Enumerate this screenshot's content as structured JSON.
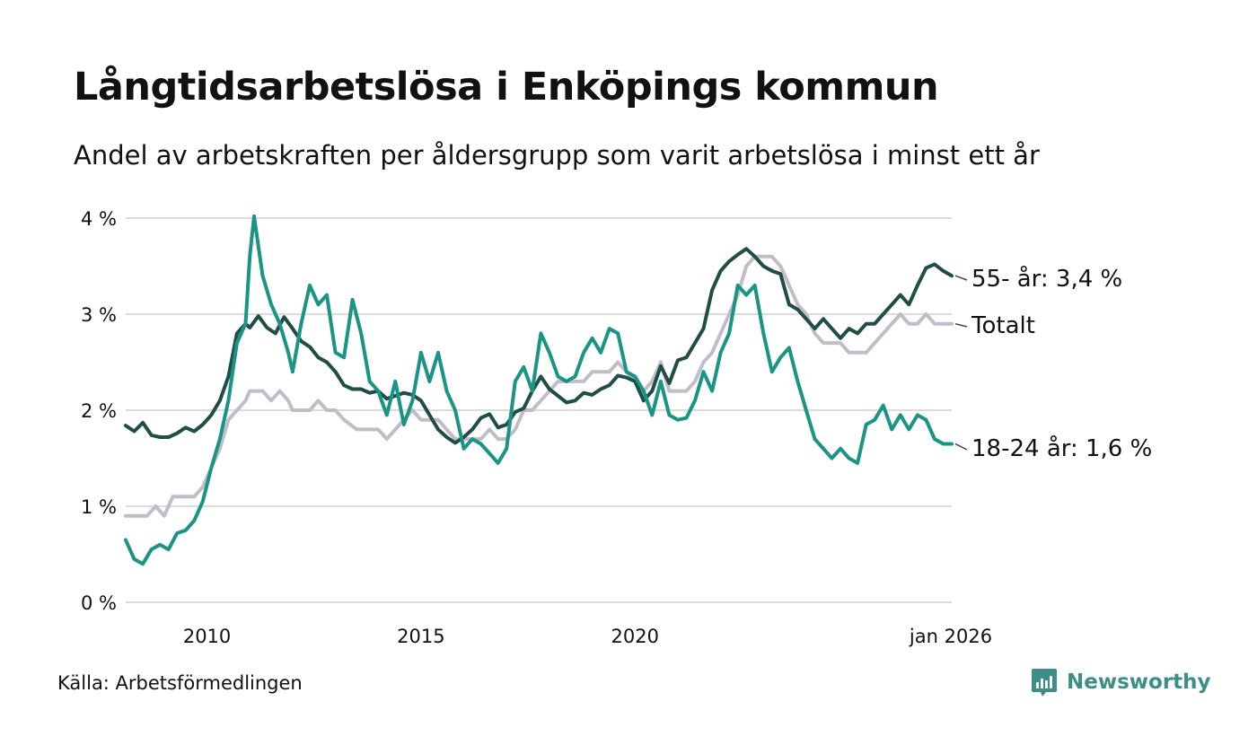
{
  "title": "Långtidsarbetslösa i Enköpings kommun",
  "subtitle": "Andel av arbetskraften per åldersgrupp som varit arbetslösa i minst ett år",
  "source": "Källa: Arbetsförmedlingen",
  "brand": {
    "name": "Newsworthy",
    "icon": "bar-chart-icon",
    "color": "#3c8f86"
  },
  "chart_data": {
    "type": "line",
    "title": "Långtidsarbetslösa i Enköpings kommun",
    "ylabel": "",
    "xlabel": "",
    "ylim": [
      0,
      4
    ],
    "xlim": [
      2008.1,
      2026.0
    ],
    "grid": true,
    "y_ticks": [
      {
        "value": 0,
        "label": "0 %"
      },
      {
        "value": 1,
        "label": "1 %"
      },
      {
        "value": 2,
        "label": "2 %"
      },
      {
        "value": 3,
        "label": "3 %"
      },
      {
        "value": 4,
        "label": "4 %"
      }
    ],
    "x_ticks": [
      {
        "value": 2010,
        "label": "2010"
      },
      {
        "value": 2015,
        "label": "2015"
      },
      {
        "value": 2020,
        "label": "2020"
      },
      {
        "value": 2026,
        "label": "jan 2026"
      }
    ],
    "series": [
      {
        "name": "Totalt",
        "label": "Totalt",
        "color": "#c2bcc9",
        "points": [
          [
            2008.1,
            0.9
          ],
          [
            2008.4,
            0.9
          ],
          [
            2008.6,
            0.9
          ],
          [
            2008.8,
            1.0
          ],
          [
            2009.0,
            0.9
          ],
          [
            2009.2,
            1.1
          ],
          [
            2009.5,
            1.1
          ],
          [
            2009.7,
            1.1
          ],
          [
            2009.9,
            1.2
          ],
          [
            2010.1,
            1.4
          ],
          [
            2010.3,
            1.6
          ],
          [
            2010.5,
            1.9
          ],
          [
            2010.7,
            2.0
          ],
          [
            2010.9,
            2.1
          ],
          [
            2011.0,
            2.2
          ],
          [
            2011.3,
            2.2
          ],
          [
            2011.5,
            2.1
          ],
          [
            2011.7,
            2.2
          ],
          [
            2011.9,
            2.1
          ],
          [
            2012.0,
            2.0
          ],
          [
            2012.2,
            2.0
          ],
          [
            2012.4,
            2.0
          ],
          [
            2012.6,
            2.1
          ],
          [
            2012.8,
            2.0
          ],
          [
            2013.0,
            2.0
          ],
          [
            2013.2,
            1.9
          ],
          [
            2013.5,
            1.8
          ],
          [
            2013.8,
            1.8
          ],
          [
            2014.0,
            1.8
          ],
          [
            2014.2,
            1.7
          ],
          [
            2014.4,
            1.8
          ],
          [
            2014.6,
            1.9
          ],
          [
            2014.8,
            2.0
          ],
          [
            2015.0,
            1.9
          ],
          [
            2015.2,
            1.9
          ],
          [
            2015.4,
            1.9
          ],
          [
            2015.6,
            1.8
          ],
          [
            2015.8,
            1.7
          ],
          [
            2016.0,
            1.7
          ],
          [
            2016.2,
            1.7
          ],
          [
            2016.4,
            1.7
          ],
          [
            2016.6,
            1.8
          ],
          [
            2016.8,
            1.7
          ],
          [
            2017.0,
            1.7
          ],
          [
            2017.2,
            1.8
          ],
          [
            2017.4,
            2.0
          ],
          [
            2017.6,
            2.0
          ],
          [
            2017.8,
            2.1
          ],
          [
            2018.0,
            2.2
          ],
          [
            2018.2,
            2.3
          ],
          [
            2018.4,
            2.3
          ],
          [
            2018.6,
            2.3
          ],
          [
            2018.8,
            2.3
          ],
          [
            2019.0,
            2.4
          ],
          [
            2019.2,
            2.4
          ],
          [
            2019.4,
            2.4
          ],
          [
            2019.6,
            2.5
          ],
          [
            2019.8,
            2.4
          ],
          [
            2020.0,
            2.3
          ],
          [
            2020.2,
            2.2
          ],
          [
            2020.4,
            2.3
          ],
          [
            2020.6,
            2.5
          ],
          [
            2020.8,
            2.2
          ],
          [
            2021.0,
            2.2
          ],
          [
            2021.2,
            2.2
          ],
          [
            2021.4,
            2.3
          ],
          [
            2021.6,
            2.5
          ],
          [
            2021.8,
            2.6
          ],
          [
            2022.0,
            2.8
          ],
          [
            2022.2,
            3.0
          ],
          [
            2022.4,
            3.2
          ],
          [
            2022.6,
            3.5
          ],
          [
            2022.8,
            3.6
          ],
          [
            2023.0,
            3.6
          ],
          [
            2023.2,
            3.6
          ],
          [
            2023.4,
            3.5
          ],
          [
            2023.6,
            3.3
          ],
          [
            2023.8,
            3.1
          ],
          [
            2024.0,
            3.0
          ],
          [
            2024.2,
            2.8
          ],
          [
            2024.4,
            2.7
          ],
          [
            2024.6,
            2.7
          ],
          [
            2024.8,
            2.7
          ],
          [
            2025.0,
            2.6
          ],
          [
            2025.2,
            2.6
          ],
          [
            2025.4,
            2.6
          ],
          [
            2025.6,
            2.7
          ],
          [
            2025.8,
            2.8
          ],
          [
            2026.0,
            2.9
          ],
          [
            2026.2,
            3.0
          ],
          [
            2026.4,
            2.9
          ],
          [
            2026.6,
            2.9
          ],
          [
            2026.8,
            3.0
          ],
          [
            2027.0,
            2.9
          ],
          [
            2027.2,
            2.9
          ],
          [
            2027.4,
            2.9
          ]
        ]
      },
      {
        "name": "55- år",
        "label": "55- år: 3,4 %",
        "color": "#204d46",
        "points": [
          [
            2008.1,
            1.84
          ],
          [
            2008.3,
            1.78
          ],
          [
            2008.5,
            1.87
          ],
          [
            2008.7,
            1.74
          ],
          [
            2008.9,
            1.72
          ],
          [
            2009.1,
            1.72
          ],
          [
            2009.3,
            1.76
          ],
          [
            2009.5,
            1.82
          ],
          [
            2009.7,
            1.78
          ],
          [
            2009.9,
            1.85
          ],
          [
            2010.1,
            1.95
          ],
          [
            2010.3,
            2.1
          ],
          [
            2010.5,
            2.35
          ],
          [
            2010.7,
            2.8
          ],
          [
            2010.9,
            2.9
          ],
          [
            2011.0,
            2.86
          ],
          [
            2011.2,
            2.98
          ],
          [
            2011.4,
            2.86
          ],
          [
            2011.6,
            2.8
          ],
          [
            2011.8,
            2.97
          ],
          [
            2012.0,
            2.85
          ],
          [
            2012.2,
            2.72
          ],
          [
            2012.4,
            2.66
          ],
          [
            2012.6,
            2.55
          ],
          [
            2012.8,
            2.5
          ],
          [
            2013.0,
            2.4
          ],
          [
            2013.2,
            2.26
          ],
          [
            2013.4,
            2.22
          ],
          [
            2013.6,
            2.22
          ],
          [
            2013.8,
            2.18
          ],
          [
            2014.0,
            2.2
          ],
          [
            2014.2,
            2.12
          ],
          [
            2014.4,
            2.15
          ],
          [
            2014.6,
            2.18
          ],
          [
            2014.8,
            2.16
          ],
          [
            2015.0,
            2.1
          ],
          [
            2015.2,
            1.95
          ],
          [
            2015.4,
            1.8
          ],
          [
            2015.6,
            1.72
          ],
          [
            2015.8,
            1.66
          ],
          [
            2016.0,
            1.72
          ],
          [
            2016.2,
            1.8
          ],
          [
            2016.4,
            1.92
          ],
          [
            2016.6,
            1.96
          ],
          [
            2016.8,
            1.82
          ],
          [
            2017.0,
            1.85
          ],
          [
            2017.2,
            1.98
          ],
          [
            2017.4,
            2.02
          ],
          [
            2017.6,
            2.2
          ],
          [
            2017.8,
            2.35
          ],
          [
            2018.0,
            2.22
          ],
          [
            2018.2,
            2.15
          ],
          [
            2018.4,
            2.08
          ],
          [
            2018.6,
            2.1
          ],
          [
            2018.8,
            2.18
          ],
          [
            2019.0,
            2.16
          ],
          [
            2019.2,
            2.22
          ],
          [
            2019.4,
            2.26
          ],
          [
            2019.6,
            2.36
          ],
          [
            2019.8,
            2.34
          ],
          [
            2020.0,
            2.3
          ],
          [
            2020.2,
            2.1
          ],
          [
            2020.4,
            2.2
          ],
          [
            2020.6,
            2.46
          ],
          [
            2020.8,
            2.28
          ],
          [
            2021.0,
            2.52
          ],
          [
            2021.2,
            2.55
          ],
          [
            2021.4,
            2.7
          ],
          [
            2021.6,
            2.85
          ],
          [
            2021.8,
            3.25
          ],
          [
            2022.0,
            3.45
          ],
          [
            2022.2,
            3.55
          ],
          [
            2022.4,
            3.62
          ],
          [
            2022.6,
            3.68
          ],
          [
            2022.8,
            3.6
          ],
          [
            2023.0,
            3.5
          ],
          [
            2023.2,
            3.45
          ],
          [
            2023.4,
            3.42
          ],
          [
            2023.6,
            3.1
          ],
          [
            2023.8,
            3.05
          ],
          [
            2024.0,
            2.95
          ],
          [
            2024.2,
            2.85
          ],
          [
            2024.4,
            2.95
          ],
          [
            2024.6,
            2.85
          ],
          [
            2024.8,
            2.75
          ],
          [
            2025.0,
            2.85
          ],
          [
            2025.2,
            2.8
          ],
          [
            2025.4,
            2.9
          ],
          [
            2025.6,
            2.9
          ],
          [
            2025.8,
            3.0
          ],
          [
            2026.0,
            3.1
          ],
          [
            2026.2,
            3.2
          ],
          [
            2026.4,
            3.1
          ],
          [
            2026.6,
            3.3
          ],
          [
            2026.8,
            3.48
          ],
          [
            2027.0,
            3.52
          ],
          [
            2027.2,
            3.45
          ],
          [
            2027.4,
            3.4
          ]
        ]
      },
      {
        "name": "18-24 år",
        "label": "18-24 år: 1,6 %",
        "color": "#1a9485",
        "points": [
          [
            2008.1,
            0.65
          ],
          [
            2008.3,
            0.45
          ],
          [
            2008.5,
            0.4
          ],
          [
            2008.7,
            0.55
          ],
          [
            2008.9,
            0.6
          ],
          [
            2009.1,
            0.55
          ],
          [
            2009.3,
            0.72
          ],
          [
            2009.5,
            0.75
          ],
          [
            2009.7,
            0.85
          ],
          [
            2009.9,
            1.05
          ],
          [
            2010.1,
            1.4
          ],
          [
            2010.3,
            1.7
          ],
          [
            2010.5,
            2.1
          ],
          [
            2010.7,
            2.7
          ],
          [
            2010.9,
            2.9
          ],
          [
            2011.0,
            3.6
          ],
          [
            2011.1,
            4.02
          ],
          [
            2011.3,
            3.4
          ],
          [
            2011.5,
            3.1
          ],
          [
            2011.7,
            2.9
          ],
          [
            2011.9,
            2.6
          ],
          [
            2012.0,
            2.4
          ],
          [
            2012.2,
            2.9
          ],
          [
            2012.4,
            3.3
          ],
          [
            2012.6,
            3.1
          ],
          [
            2012.8,
            3.2
          ],
          [
            2013.0,
            2.6
          ],
          [
            2013.2,
            2.55
          ],
          [
            2013.4,
            3.15
          ],
          [
            2013.6,
            2.8
          ],
          [
            2013.8,
            2.3
          ],
          [
            2014.0,
            2.2
          ],
          [
            2014.2,
            1.95
          ],
          [
            2014.4,
            2.3
          ],
          [
            2014.6,
            1.85
          ],
          [
            2014.8,
            2.1
          ],
          [
            2015.0,
            2.6
          ],
          [
            2015.2,
            2.3
          ],
          [
            2015.4,
            2.6
          ],
          [
            2015.6,
            2.2
          ],
          [
            2015.8,
            2.0
          ],
          [
            2016.0,
            1.6
          ],
          [
            2016.2,
            1.7
          ],
          [
            2016.4,
            1.65
          ],
          [
            2016.6,
            1.55
          ],
          [
            2016.8,
            1.45
          ],
          [
            2017.0,
            1.6
          ],
          [
            2017.2,
            2.3
          ],
          [
            2017.4,
            2.45
          ],
          [
            2017.6,
            2.2
          ],
          [
            2017.8,
            2.8
          ],
          [
            2018.0,
            2.6
          ],
          [
            2018.2,
            2.35
          ],
          [
            2018.4,
            2.3
          ],
          [
            2018.6,
            2.35
          ],
          [
            2018.8,
            2.6
          ],
          [
            2019.0,
            2.75
          ],
          [
            2019.2,
            2.6
          ],
          [
            2019.4,
            2.85
          ],
          [
            2019.6,
            2.8
          ],
          [
            2019.8,
            2.4
          ],
          [
            2020.0,
            2.35
          ],
          [
            2020.2,
            2.2
          ],
          [
            2020.4,
            1.95
          ],
          [
            2020.6,
            2.3
          ],
          [
            2020.8,
            1.95
          ],
          [
            2021.0,
            1.9
          ],
          [
            2021.2,
            1.92
          ],
          [
            2021.4,
            2.1
          ],
          [
            2021.6,
            2.4
          ],
          [
            2021.8,
            2.2
          ],
          [
            2022.0,
            2.6
          ],
          [
            2022.2,
            2.8
          ],
          [
            2022.4,
            3.3
          ],
          [
            2022.6,
            3.2
          ],
          [
            2022.8,
            3.3
          ],
          [
            2023.0,
            2.8
          ],
          [
            2023.2,
            2.4
          ],
          [
            2023.4,
            2.55
          ],
          [
            2023.6,
            2.65
          ],
          [
            2023.8,
            2.3
          ],
          [
            2024.0,
            2.0
          ],
          [
            2024.2,
            1.7
          ],
          [
            2024.4,
            1.6
          ],
          [
            2024.6,
            1.5
          ],
          [
            2024.8,
            1.6
          ],
          [
            2025.0,
            1.5
          ],
          [
            2025.2,
            1.45
          ],
          [
            2025.4,
            1.85
          ],
          [
            2025.6,
            1.9
          ],
          [
            2025.8,
            2.05
          ],
          [
            2026.0,
            1.8
          ],
          [
            2026.2,
            1.95
          ],
          [
            2026.4,
            1.8
          ],
          [
            2026.6,
            1.95
          ],
          [
            2026.8,
            1.9
          ],
          [
            2027.0,
            1.7
          ],
          [
            2027.2,
            1.65
          ],
          [
            2027.4,
            1.65
          ]
        ]
      }
    ]
  }
}
